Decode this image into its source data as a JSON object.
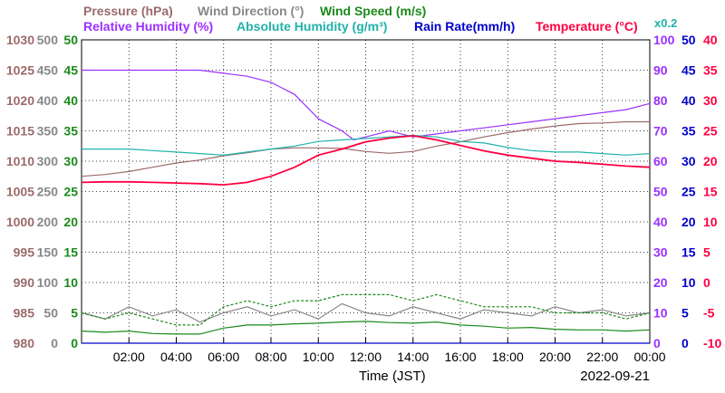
{
  "chart_data": {
    "type": "line",
    "date_label": "2022-09-21",
    "xlabel": "Time (JST)",
    "x_range": [
      0,
      24
    ],
    "x_ticks": [
      "02:00",
      "04:00",
      "06:00",
      "08:00",
      "10:00",
      "12:00",
      "14:00",
      "16:00",
      "18:00",
      "20:00",
      "22:00",
      "00:00"
    ],
    "x_tick_hours": [
      2,
      4,
      6,
      8,
      10,
      12,
      14,
      16,
      18,
      20,
      22,
      24
    ],
    "grid": true,
    "legend_top": [
      {
        "label": "Pressure (hPa)",
        "color": "#9c6a6a"
      },
      {
        "label": "Wind Direction (°)",
        "color": "#888888"
      },
      {
        "label": "Wind Speed (m/s)",
        "color": "#1a8a1a"
      }
    ],
    "legend_bottom": [
      {
        "label": "Relative Humidity (%)",
        "color": "#9b30ff"
      },
      {
        "label": "Absolute Humidity (g/m³)",
        "color": "#20b2aa"
      },
      {
        "label": "Rain Rate(mm/h)",
        "color": "#0000cc"
      },
      {
        "label": "Temperature (°C)",
        "color": "#ff0040"
      }
    ],
    "scale_note": {
      "label": "x0.2",
      "color": "#20b2aa"
    },
    "axes": {
      "pressure": {
        "color": "#9c6a6a",
        "range": [
          980,
          1030
        ],
        "ticks": [
          "1030",
          "1025",
          "1020",
          "1015",
          "1010",
          "1005",
          "1000",
          "995",
          "990",
          "985",
          "980"
        ]
      },
      "wind_direction": {
        "color": "#888888",
        "range": [
          0,
          500
        ],
        "ticks": [
          "500",
          "450",
          "400",
          "350",
          "300",
          "250",
          "200",
          "150",
          "100",
          "50",
          "0"
        ]
      },
      "wind_speed": {
        "color": "#1a8a1a",
        "range": [
          0,
          50
        ],
        "ticks": [
          "50",
          "45",
          "40",
          "35",
          "30",
          "25",
          "20",
          "15",
          "10",
          "5",
          "0"
        ]
      },
      "relative_humidity": {
        "color": "#9b30ff",
        "range": [
          0,
          100
        ],
        "ticks": [
          "100",
          "90",
          "80",
          "70",
          "60",
          "50",
          "40",
          "30",
          "20",
          "10",
          "0"
        ]
      },
      "rain_rate": {
        "color": "#0000cc",
        "range": [
          0,
          50
        ],
        "ticks": [
          "50",
          "45",
          "40",
          "35",
          "30",
          "25",
          "20",
          "15",
          "10",
          "5",
          "0"
        ]
      },
      "temperature": {
        "color": "#ff0040",
        "range": [
          -10,
          40
        ],
        "ticks": [
          "40",
          "35",
          "30",
          "25",
          "20",
          "15",
          "10",
          "5",
          "0",
          "-5",
          "-10"
        ]
      }
    },
    "series": [
      {
        "name": "Pressure (hPa)",
        "axis": "pressure",
        "color": "#9c6a6a",
        "x": [
          0,
          1,
          2,
          3,
          4,
          5,
          6,
          7,
          8,
          9,
          10,
          11,
          12,
          13,
          14,
          15,
          16,
          17,
          18,
          19,
          20,
          21,
          22,
          23,
          24
        ],
        "y": [
          1007.5,
          1007.8,
          1008.3,
          1009,
          1009.7,
          1010.2,
          1010.9,
          1011.4,
          1012,
          1012.2,
          1012.2,
          1012.1,
          1011.6,
          1011.3,
          1011.6,
          1012.5,
          1013.2,
          1014,
          1014.7,
          1015.3,
          1015.8,
          1016.2,
          1016.3,
          1016.5,
          1016.5
        ]
      },
      {
        "name": "Relative Humidity (%)",
        "axis": "relative_humidity",
        "color": "#9b30ff",
        "x": [
          0,
          1,
          2,
          3,
          4,
          5,
          6,
          7,
          7.5,
          8,
          8.5,
          9,
          9.5,
          10,
          10.5,
          11,
          11.5,
          12,
          12.5,
          13,
          14,
          15,
          16,
          17,
          18,
          19,
          20,
          21,
          22,
          23,
          24
        ],
        "y": [
          90,
          90,
          90,
          90,
          90,
          90,
          89,
          88,
          87,
          86,
          84,
          82,
          78,
          74,
          72,
          70,
          67,
          68,
          69,
          70,
          68,
          69,
          70,
          71,
          72,
          73,
          74,
          75,
          76,
          77,
          79
        ]
      },
      {
        "name": "Absolute Humidity (g/m³)",
        "axis": "relative_humidity",
        "color": "#20b2aa",
        "x": [
          0,
          1,
          2,
          3,
          4,
          5,
          6,
          7,
          8,
          9,
          10,
          11,
          12,
          13,
          14,
          15,
          16,
          17,
          18,
          19,
          20,
          21,
          22,
          23,
          24
        ],
        "y": [
          64,
          64,
          64,
          63.5,
          63,
          62.5,
          62,
          63,
          64,
          65,
          66.5,
          67,
          67.5,
          68,
          68.5,
          68,
          66.5,
          66,
          64.5,
          63.5,
          63,
          63,
          62.5,
          62,
          62.5
        ]
      },
      {
        "name": "Temperature (°C)",
        "axis": "temperature",
        "color": "#ff0040",
        "x": [
          0,
          1,
          2,
          3,
          4,
          5,
          6,
          7,
          8,
          9,
          10,
          11,
          12,
          13,
          14,
          15,
          16,
          17,
          18,
          19,
          20,
          21,
          22,
          23,
          24
        ],
        "y": [
          16.5,
          16.6,
          16.6,
          16.5,
          16.4,
          16.3,
          16.1,
          16.5,
          17.5,
          19,
          21,
          22,
          23.2,
          23.8,
          24.2,
          23.5,
          22.6,
          21.7,
          21,
          20.5,
          20,
          19.8,
          19.5,
          19.2,
          19
        ]
      },
      {
        "name": "Rain Rate(mm/h)",
        "axis": "rain_rate",
        "color": "#0000cc",
        "x": [
          0,
          24
        ],
        "y": [
          0,
          0
        ]
      },
      {
        "name": "Wind Direction (°)",
        "axis": "wind_direction",
        "color": "#888888",
        "x": [
          0,
          1,
          2,
          3,
          4,
          5,
          6,
          7,
          8,
          9,
          10,
          11,
          12,
          13,
          14,
          15,
          16,
          17,
          18,
          19,
          20,
          21,
          22,
          23,
          24
        ],
        "y": [
          50,
          40,
          60,
          45,
          55,
          35,
          50,
          60,
          45,
          55,
          40,
          65,
          50,
          45,
          60,
          50,
          40,
          55,
          50,
          45,
          60,
          50,
          55,
          45,
          50
        ]
      },
      {
        "name": "Wind Speed max (m/s)",
        "axis": "wind_speed",
        "color": "#1a8a1a",
        "x": [
          0,
          1,
          2,
          3,
          4,
          5,
          6,
          7,
          8,
          9,
          10,
          11,
          12,
          13,
          14,
          15,
          16,
          17,
          18,
          19,
          20,
          21,
          22,
          23,
          24
        ],
        "y": [
          5,
          4,
          5,
          4,
          3,
          3,
          6,
          7,
          6,
          7,
          7,
          8,
          8,
          8,
          7,
          8,
          7,
          6,
          6,
          6,
          5,
          5,
          5,
          4,
          5
        ]
      },
      {
        "name": "Wind Speed avg (m/s)",
        "axis": "wind_speed",
        "color": "#1a8a1a",
        "x": [
          0,
          1,
          2,
          3,
          4,
          5,
          6,
          7,
          8,
          9,
          10,
          11,
          12,
          13,
          14,
          15,
          16,
          17,
          18,
          19,
          20,
          21,
          22,
          23,
          24
        ],
        "y": [
          2,
          1.8,
          2,
          1.6,
          1.5,
          1.5,
          2.5,
          3,
          3,
          3.2,
          3.3,
          3.5,
          3.6,
          3.4,
          3.3,
          3.5,
          3,
          2.8,
          2.5,
          2.6,
          2.3,
          2.2,
          2.2,
          2,
          2.2
        ]
      }
    ]
  }
}
